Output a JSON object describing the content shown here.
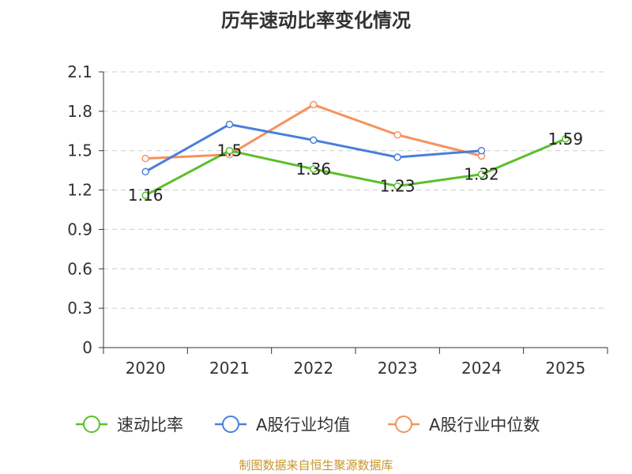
{
  "chart_data": {
    "type": "line",
    "title": "历年速动比率变化情况",
    "categories": [
      "2020",
      "2021",
      "2022",
      "2023",
      "2024",
      "2025"
    ],
    "ylim": [
      0,
      2.1
    ],
    "yticks": [
      "0",
      "0.3",
      "0.6",
      "0.9",
      "1.2",
      "1.5",
      "1.8",
      "2.1"
    ],
    "grid": true,
    "legend_position": "bottom",
    "series": [
      {
        "name": "速动比率",
        "color": "#5ac02a",
        "show_labels": true,
        "values": [
          1.16,
          1.5,
          1.36,
          1.23,
          1.32,
          1.59
        ]
      },
      {
        "name": "A股行业均值",
        "color": "#4a7fdb",
        "show_labels": false,
        "values": [
          1.34,
          1.7,
          1.58,
          1.45,
          1.5,
          null
        ]
      },
      {
        "name": "A股行业中位数",
        "color": "#f5925e",
        "show_labels": false,
        "values": [
          1.44,
          1.47,
          1.85,
          1.62,
          1.46,
          null
        ]
      }
    ],
    "data_labels": [
      "1.16",
      "1.5",
      "1.36",
      "1.23",
      "1.32",
      "1.59"
    ]
  },
  "source": "制图数据来自恒生聚源数据库"
}
